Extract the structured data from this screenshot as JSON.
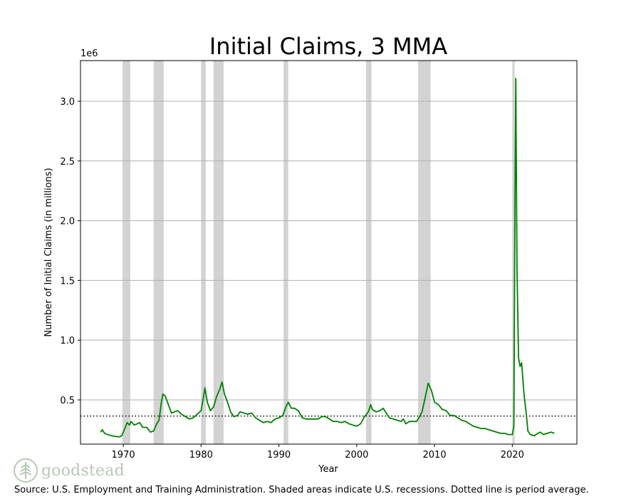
{
  "chart_data": {
    "type": "line",
    "title": "Initial Claims, 3 MMA",
    "xlabel": "Year",
    "ylabel": "Number of Initial Claims (in millions)",
    "y_offset_label": "1e6",
    "xlim": [
      1964.5,
      2028.3
    ],
    "ylim": [
      0.13,
      3.34
    ],
    "x_ticks": [
      1970,
      1980,
      1990,
      2000,
      2010,
      2020
    ],
    "x_tick_labels": [
      "1970",
      "1980",
      "1990",
      "2000",
      "2010",
      "2020"
    ],
    "y_ticks": [
      0.5,
      1.0,
      1.5,
      2.0,
      2.5,
      3.0
    ],
    "y_tick_labels": [
      "0.5",
      "1.0",
      "1.5",
      "2.0",
      "2.5",
      "3.0"
    ],
    "grid": "horizontal",
    "average_line": 0.365,
    "recessions": [
      [
        1969.9,
        1970.9
      ],
      [
        1973.9,
        1975.2
      ],
      [
        1980.0,
        1980.6
      ],
      [
        1981.6,
        1982.9
      ],
      [
        1990.6,
        1991.2
      ],
      [
        2001.2,
        2001.9
      ],
      [
        2007.9,
        2009.5
      ],
      [
        2020.0,
        2020.3
      ]
    ],
    "series": [
      {
        "name": "Initial Claims, 3 MMA",
        "color": "#008000",
        "points": [
          [
            1967.1,
            0.23
          ],
          [
            1967.3,
            0.25
          ],
          [
            1967.6,
            0.22
          ],
          [
            1968.0,
            0.21
          ],
          [
            1968.5,
            0.2
          ],
          [
            1969.0,
            0.195
          ],
          [
            1969.5,
            0.19
          ],
          [
            1969.8,
            0.2
          ],
          [
            1970.2,
            0.26
          ],
          [
            1970.5,
            0.31
          ],
          [
            1970.8,
            0.29
          ],
          [
            1971.0,
            0.32
          ],
          [
            1971.4,
            0.29
          ],
          [
            1971.8,
            0.3
          ],
          [
            1972.1,
            0.31
          ],
          [
            1972.5,
            0.27
          ],
          [
            1973.0,
            0.27
          ],
          [
            1973.5,
            0.23
          ],
          [
            1973.9,
            0.24
          ],
          [
            1974.3,
            0.3
          ],
          [
            1974.6,
            0.33
          ],
          [
            1974.9,
            0.48
          ],
          [
            1975.1,
            0.55
          ],
          [
            1975.4,
            0.53
          ],
          [
            1975.8,
            0.46
          ],
          [
            1976.2,
            0.39
          ],
          [
            1976.6,
            0.4
          ],
          [
            1977.0,
            0.41
          ],
          [
            1977.5,
            0.38
          ],
          [
            1978.0,
            0.36
          ],
          [
            1978.5,
            0.34
          ],
          [
            1979.0,
            0.35
          ],
          [
            1979.5,
            0.38
          ],
          [
            1980.0,
            0.41
          ],
          [
            1980.3,
            0.52
          ],
          [
            1980.5,
            0.6
          ],
          [
            1980.8,
            0.48
          ],
          [
            1981.2,
            0.41
          ],
          [
            1981.6,
            0.44
          ],
          [
            1982.0,
            0.53
          ],
          [
            1982.4,
            0.59
          ],
          [
            1982.7,
            0.65
          ],
          [
            1983.0,
            0.55
          ],
          [
            1983.4,
            0.48
          ],
          [
            1983.8,
            0.4
          ],
          [
            1984.2,
            0.36
          ],
          [
            1984.7,
            0.37
          ],
          [
            1985.0,
            0.4
          ],
          [
            1985.5,
            0.39
          ],
          [
            1986.0,
            0.38
          ],
          [
            1986.5,
            0.39
          ],
          [
            1987.0,
            0.35
          ],
          [
            1987.5,
            0.33
          ],
          [
            1988.0,
            0.31
          ],
          [
            1988.5,
            0.32
          ],
          [
            1989.0,
            0.31
          ],
          [
            1989.5,
            0.34
          ],
          [
            1990.0,
            0.35
          ],
          [
            1990.5,
            0.37
          ],
          [
            1990.9,
            0.44
          ],
          [
            1991.2,
            0.48
          ],
          [
            1991.6,
            0.43
          ],
          [
            1992.0,
            0.43
          ],
          [
            1992.5,
            0.41
          ],
          [
            1993.0,
            0.35
          ],
          [
            1993.5,
            0.34
          ],
          [
            1994.0,
            0.34
          ],
          [
            1994.5,
            0.34
          ],
          [
            1995.0,
            0.34
          ],
          [
            1995.5,
            0.36
          ],
          [
            1996.0,
            0.36
          ],
          [
            1996.5,
            0.34
          ],
          [
            1997.0,
            0.32
          ],
          [
            1997.5,
            0.32
          ],
          [
            1998.0,
            0.31
          ],
          [
            1998.5,
            0.32
          ],
          [
            1999.0,
            0.3
          ],
          [
            1999.5,
            0.29
          ],
          [
            2000.0,
            0.28
          ],
          [
            2000.5,
            0.3
          ],
          [
            2001.0,
            0.36
          ],
          [
            2001.5,
            0.4
          ],
          [
            2001.8,
            0.46
          ],
          [
            2002.0,
            0.42
          ],
          [
            2002.5,
            0.4
          ],
          [
            2003.0,
            0.41
          ],
          [
            2003.4,
            0.43
          ],
          [
            2003.8,
            0.39
          ],
          [
            2004.2,
            0.35
          ],
          [
            2004.7,
            0.34
          ],
          [
            2005.2,
            0.33
          ],
          [
            2005.7,
            0.32
          ],
          [
            2006.0,
            0.34
          ],
          [
            2006.3,
            0.3
          ],
          [
            2006.8,
            0.32
          ],
          [
            2007.3,
            0.32
          ],
          [
            2007.7,
            0.32
          ],
          [
            2008.0,
            0.35
          ],
          [
            2008.4,
            0.4
          ],
          [
            2008.8,
            0.52
          ],
          [
            2009.2,
            0.64
          ],
          [
            2009.6,
            0.58
          ],
          [
            2010.0,
            0.48
          ],
          [
            2010.5,
            0.46
          ],
          [
            2011.0,
            0.42
          ],
          [
            2011.5,
            0.41
          ],
          [
            2012.0,
            0.37
          ],
          [
            2012.5,
            0.37
          ],
          [
            2013.0,
            0.35
          ],
          [
            2013.5,
            0.33
          ],
          [
            2014.0,
            0.32
          ],
          [
            2014.5,
            0.3
          ],
          [
            2015.0,
            0.28
          ],
          [
            2015.5,
            0.27
          ],
          [
            2016.0,
            0.26
          ],
          [
            2016.5,
            0.26
          ],
          [
            2017.0,
            0.25
          ],
          [
            2017.5,
            0.24
          ],
          [
            2018.0,
            0.23
          ],
          [
            2018.5,
            0.22
          ],
          [
            2019.0,
            0.22
          ],
          [
            2019.5,
            0.21
          ],
          [
            2020.0,
            0.21
          ],
          [
            2020.2,
            0.28
          ],
          [
            2020.35,
            2.2
          ],
          [
            2020.45,
            3.19
          ],
          [
            2020.6,
            1.6
          ],
          [
            2020.8,
            0.85
          ],
          [
            2021.0,
            0.78
          ],
          [
            2021.2,
            0.81
          ],
          [
            2021.5,
            0.55
          ],
          [
            2021.8,
            0.38
          ],
          [
            2022.0,
            0.24
          ],
          [
            2022.3,
            0.21
          ],
          [
            2022.8,
            0.2
          ],
          [
            2023.3,
            0.22
          ],
          [
            2023.6,
            0.23
          ],
          [
            2024.0,
            0.21
          ],
          [
            2024.5,
            0.22
          ],
          [
            2025.0,
            0.23
          ],
          [
            2025.4,
            0.22
          ]
        ]
      }
    ],
    "source": "Source: U.S. Employment and Training Administration. Shaded areas indicate U.S. recessions. Dotted line is period average."
  },
  "brand": {
    "name": "goodstead",
    "color": "#b7c9b5"
  },
  "colors": {
    "line": "#008000",
    "recession": "#d3d3d3",
    "grid": "#b0b0b0"
  }
}
